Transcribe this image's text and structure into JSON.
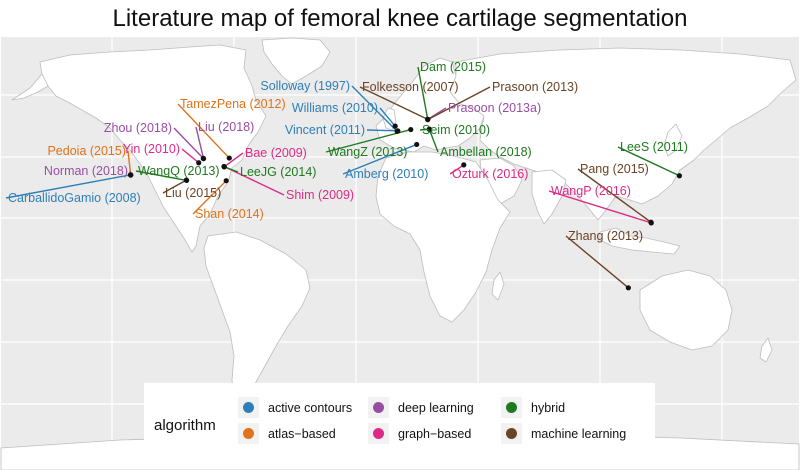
{
  "title": "Literature map of femoral knee cartilage segmentation",
  "colors": {
    "active contours": "#2e7fb7",
    "atlas-based": "#e0731c",
    "deep learning": "#9a4ea3",
    "graph-based": "#de2a86",
    "hybrid": "#1f7a1f",
    "machine learning": "#6b4326"
  },
  "legend": {
    "title": "algorithm",
    "items": [
      {
        "label": "active contours",
        "key": "active contours"
      },
      {
        "label": "atlas−based",
        "key": "atlas-based"
      },
      {
        "label": "deep learning",
        "key": "deep learning"
      },
      {
        "label": "graph−based",
        "key": "graph-based"
      },
      {
        "label": "hybrid",
        "key": "hybrid"
      },
      {
        "label": "machine learning",
        "key": "machine learning"
      }
    ]
  },
  "studies": [
    {
      "label": "Solloway (1997)",
      "algorithm": "active contours",
      "lon": -1.3,
      "lat": 51.8
    },
    {
      "label": "Williams (2010)",
      "algorithm": "active contours",
      "lon": -2.2,
      "lat": 53.5
    },
    {
      "label": "Vincent (2011)",
      "algorithm": "active contours",
      "lon": -1.0,
      "lat": 52.0
    },
    {
      "label": "Amberg (2010)",
      "algorithm": "active contours",
      "lon": 7.6,
      "lat": 47.6
    },
    {
      "label": "CarballidoGamio (2008)",
      "algorithm": "active contours",
      "lon": -122.4,
      "lat": 37.8
    },
    {
      "label": "TamezPena (2012)",
      "algorithm": "atlas-based",
      "lon": -77.6,
      "lat": 43.2
    },
    {
      "label": "Pedoia (2015)",
      "algorithm": "atlas-based",
      "lon": -122.4,
      "lat": 37.7
    },
    {
      "label": "Shan (2014)",
      "algorithm": "atlas-based",
      "lon": -79.0,
      "lat": 35.9
    },
    {
      "label": "Zhou (2018)",
      "algorithm": "deep learning",
      "lon": -89.4,
      "lat": 43.1
    },
    {
      "label": "Liu (2018)",
      "algorithm": "deep learning",
      "lon": -89.3,
      "lat": 43.0
    },
    {
      "label": "Norman (2018)",
      "algorithm": "deep learning",
      "lon": -122.5,
      "lat": 37.8
    },
    {
      "label": "Prasoon (2013a)",
      "algorithm": "deep learning",
      "lon": 12.6,
      "lat": 55.7
    },
    {
      "label": "Yin (2010)",
      "algorithm": "graph-based",
      "lon": -91.5,
      "lat": 41.7
    },
    {
      "label": "Bae (2009)",
      "algorithm": "graph-based",
      "lon": -79.9,
      "lat": 40.4
    },
    {
      "label": "Shim (2009)",
      "algorithm": "graph-based",
      "lon": -80.0,
      "lat": 40.5
    },
    {
      "label": "Ozturk (2016)",
      "algorithm": "graph-based",
      "lon": 29.0,
      "lat": 41.0
    },
    {
      "label": "WangP (2016)",
      "algorithm": "graph-based",
      "lon": 114.2,
      "lat": 22.3
    },
    {
      "label": "Dam (2015)",
      "algorithm": "hybrid",
      "lon": 12.6,
      "lat": 55.7
    },
    {
      "label": "Seim (2010)",
      "algorithm": "hybrid",
      "lon": 13.4,
      "lat": 52.5
    },
    {
      "label": "WangZ (2013)",
      "algorithm": "hybrid",
      "lon": 4.9,
      "lat": 52.4
    },
    {
      "label": "Ambellan (2018)",
      "algorithm": "hybrid",
      "lon": 13.3,
      "lat": 52.5
    },
    {
      "label": "WangQ (2013)",
      "algorithm": "hybrid",
      "lon": -97.0,
      "lat": 36.0
    },
    {
      "label": "LeeJG (2014)",
      "algorithm": "hybrid",
      "lon": -79.9,
      "lat": 40.4
    },
    {
      "label": "LeeS (2011)",
      "algorithm": "hybrid",
      "lon": 127.0,
      "lat": 37.5
    },
    {
      "label": "Folkesson (2007)",
      "algorithm": "machine learning",
      "lon": 12.6,
      "lat": 55.7
    },
    {
      "label": "Prasoon (2013)",
      "algorithm": "machine learning",
      "lon": 12.6,
      "lat": 55.6
    },
    {
      "label": "Liu (2015)",
      "algorithm": "machine learning",
      "lon": -97.1,
      "lat": 36.1
    },
    {
      "label": "Pang (2015)",
      "algorithm": "machine learning",
      "lon": 114.1,
      "lat": 22.5
    },
    {
      "label": "Zhang (2013)",
      "algorithm": "machine learning",
      "lon": 103.8,
      "lat": 1.35
    }
  ]
}
